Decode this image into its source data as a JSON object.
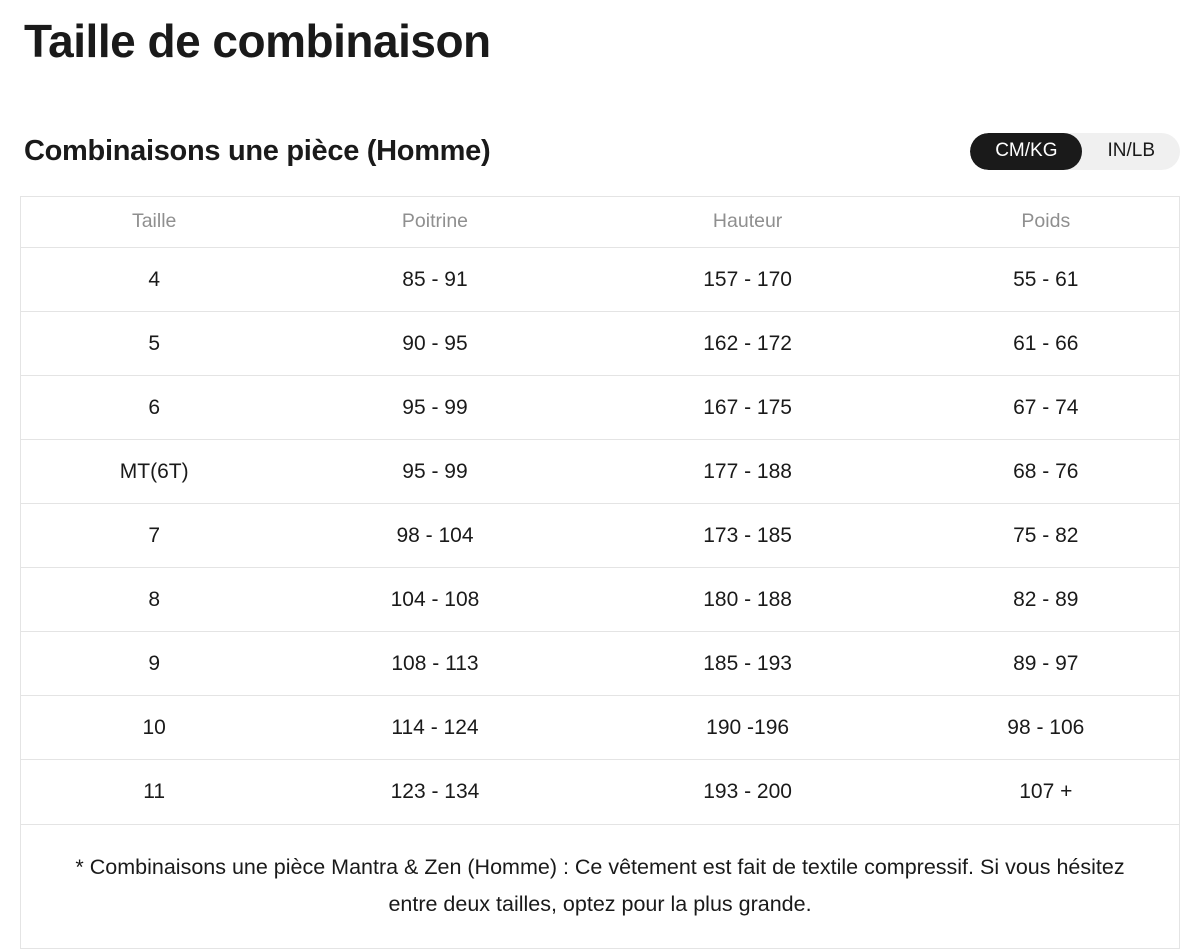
{
  "page": {
    "title": "Taille de combinaison"
  },
  "section": {
    "subtitle": "Combinaisons une pièce (Homme)",
    "unit_toggle": {
      "options": [
        {
          "label": "CM/KG",
          "selected": true
        },
        {
          "label": "IN/LB",
          "selected": false
        }
      ]
    }
  },
  "table": {
    "columns": [
      "Taille",
      "Poitrine",
      "Hauteur",
      "Poids"
    ],
    "rows": [
      [
        "4",
        "85 - 91",
        "157 - 170",
        "55 - 61"
      ],
      [
        "5",
        "90 - 95",
        "162 - 172",
        "61 - 66"
      ],
      [
        "6",
        "95 - 99",
        "167 - 175",
        "67 - 74"
      ],
      [
        "MT(6T)",
        "95 - 99",
        "177 - 188",
        "68 - 76"
      ],
      [
        "7",
        "98 - 104",
        "173 - 185",
        "75 - 82"
      ],
      [
        "8",
        "104 - 108",
        "180 - 188",
        "82 - 89"
      ],
      [
        "9",
        "108 - 113",
        "185 - 193",
        "89 - 97"
      ],
      [
        "10",
        "114 - 124",
        "190 -196",
        "98 - 106"
      ],
      [
        "11",
        "123 - 134",
        "193 - 200",
        "107 +"
      ]
    ],
    "footnote": "* Combinaisons une pièce Mantra & Zen (Homme) : Ce vêtement est fait de textile compressif. Si vous hésitez entre deux tailles, optez pour la plus grande."
  },
  "colors": {
    "text": "#1a1a1a",
    "muted": "#8f8f8f",
    "border": "#e4e4e4",
    "toggle_bg": "#f0f0f0",
    "toggle_active_bg": "#1a1a1a",
    "toggle_active_text": "#ffffff"
  }
}
